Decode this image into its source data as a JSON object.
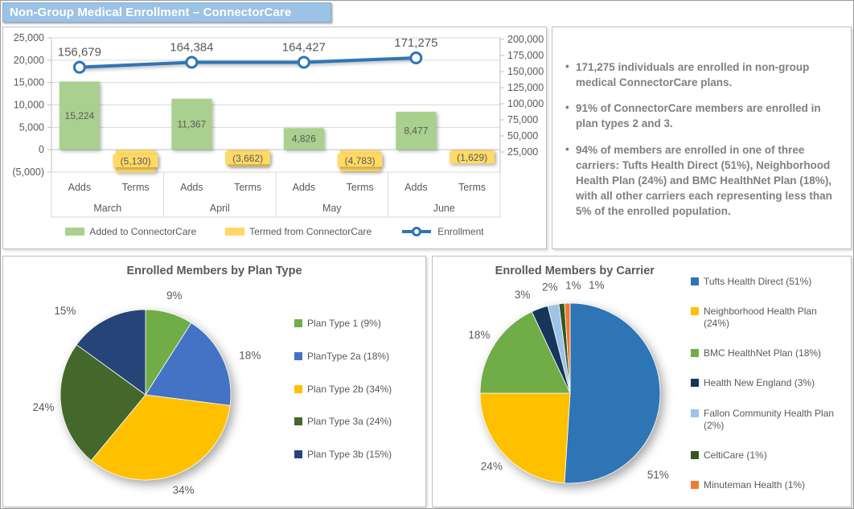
{
  "page_title": "Non-Group Medical Enrollment – ConnectorCare",
  "colors": {
    "title_bar_bg": "#9CC2E5",
    "title_bar_text": "#FFFFFF",
    "chart_text": "#595959",
    "gridline": "#D9D9D9",
    "axis_line": "#BFBFBF",
    "summary_text": "#808080"
  },
  "summary_panel": {
    "bullets": [
      "171,275 individuals are enrolled in non-group medical ConnectorCare plans.",
      "91% of ConnectorCare members are enrolled in plan types 2 and 3.",
      "94% of members are enrolled in one of three carriers: Tufts Health Direct (51%), Neighborhood Health Plan (24%) and BMC HealthNet Plan (18%), with all other carriers each representing less than 5% of the enrolled population."
    ]
  },
  "chart_data": [
    {
      "id": "enrollment_combo",
      "type": "bar+line",
      "categories": [
        "March",
        "April",
        "May",
        "June"
      ],
      "sub_categories": [
        "Adds",
        "Terms"
      ],
      "series": [
        {
          "name": "Added to ConnectorCare",
          "type": "bar",
          "axis": "primary",
          "color": "#A9D08E",
          "values": [
            15224,
            11367,
            4826,
            8477
          ]
        },
        {
          "name": "Termed from ConnectorCare",
          "type": "bar",
          "axis": "primary",
          "color": "#FFD966",
          "values": [
            -5130,
            -3662,
            -4783,
            -1629
          ]
        },
        {
          "name": "Enrollment",
          "type": "line",
          "axis": "secondary",
          "color": "#2E75B6",
          "marker_fill": "#FFFFFF",
          "values": [
            156679,
            164384,
            164427,
            171275
          ]
        }
      ],
      "primary_axis": {
        "min": -5000,
        "max": 25000,
        "step": 5000
      },
      "secondary_axis": {
        "min": 0,
        "max": 200000,
        "step": 25000,
        "first_label": 25000
      },
      "gridlines": true,
      "legend_position": "bottom"
    },
    {
      "id": "plan_type_pie",
      "type": "pie",
      "title": "Enrolled Members by Plan Type",
      "legend_position": "right",
      "slices": [
        {
          "label": "Plan Type 1 (9%)",
          "pct": 9,
          "pct_label": "9%",
          "color": "#70AD47"
        },
        {
          "label": "PlanType 2a (18%)",
          "pct": 18,
          "pct_label": "18%",
          "color": "#4472C4"
        },
        {
          "label": "Plan Type 2b (34%)",
          "pct": 34,
          "pct_label": "34%",
          "color": "#FFC000"
        },
        {
          "label": "Plan Type 3a (24%)",
          "pct": 24,
          "pct_label": "24%",
          "color": "#44682C"
        },
        {
          "label": "Plan Type 3b (15%)",
          "pct": 15,
          "pct_label": "15%",
          "color": "#264478"
        }
      ]
    },
    {
      "id": "carrier_pie",
      "type": "pie",
      "title": "Enrolled Members by Carrier",
      "legend_position": "right",
      "slices": [
        {
          "label": "Tufts Health Direct (51%)",
          "pct": 51,
          "pct_label": "51%",
          "color": "#2E75B6"
        },
        {
          "label": "Neighborhood Health Plan (24%)",
          "pct": 24,
          "pct_label": "24%",
          "color": "#FFC000"
        },
        {
          "label": "BMC HealthNet Plan (18%)",
          "pct": 18,
          "pct_label": "18%",
          "color": "#70AD47"
        },
        {
          "label": "Health New England (3%)",
          "pct": 3,
          "pct_label": "3%",
          "color": "#17365D"
        },
        {
          "label": "Fallon Community Health Plan (2%)",
          "pct": 2,
          "pct_label": "2%",
          "color": "#9DC3E6"
        },
        {
          "label": "CeltiCare (1%)",
          "pct": 1,
          "pct_label": "1%",
          "color": "#375623"
        },
        {
          "label": "Minuteman Health (1%)",
          "pct": 1,
          "pct_label": "1%",
          "color": "#ED7D31"
        }
      ]
    }
  ]
}
